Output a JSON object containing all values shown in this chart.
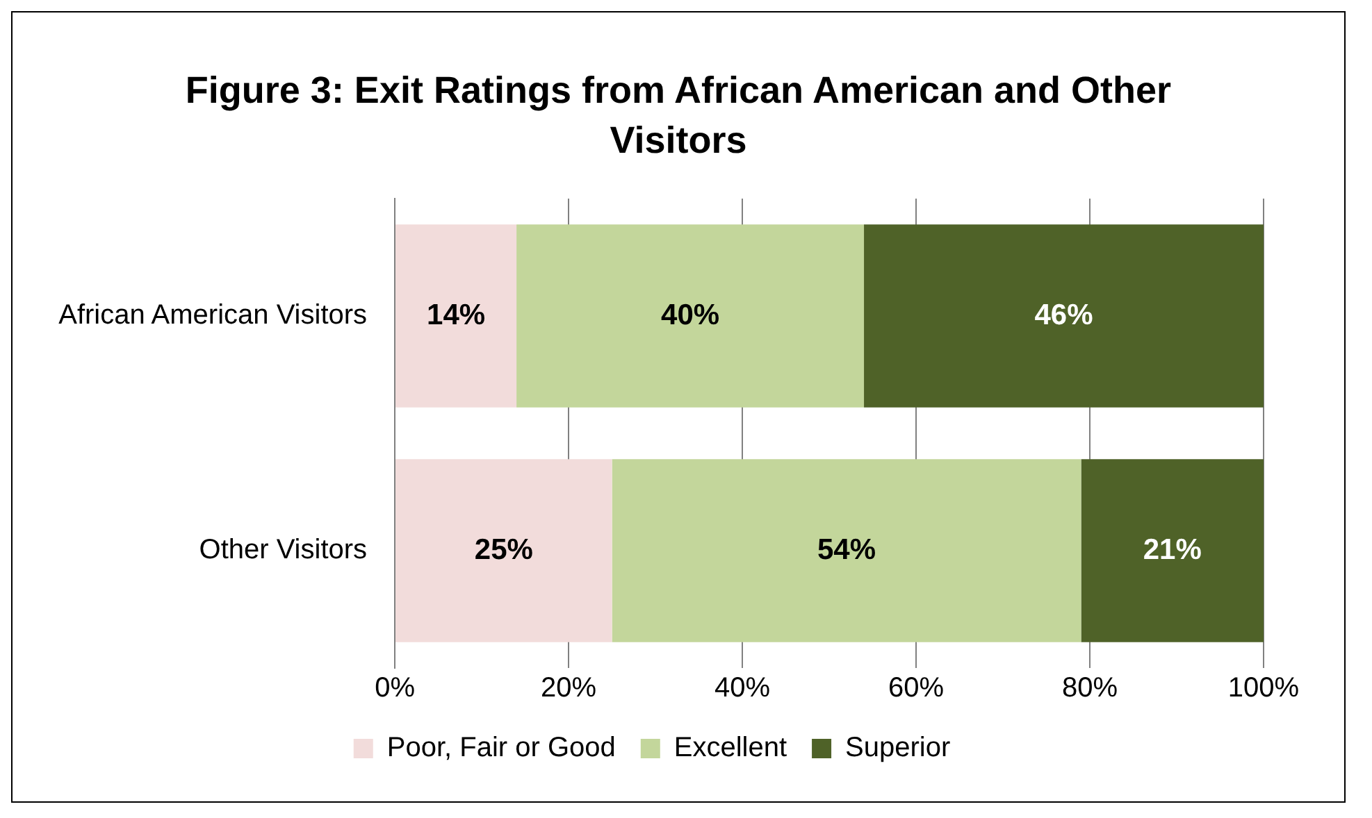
{
  "chart_data": {
    "type": "bar",
    "orientation": "horizontal",
    "stacked": true,
    "title": "Figure 3:  Exit Ratings from African American and Other Visitors",
    "categories": [
      "African American Visitors",
      "Other Visitors"
    ],
    "series": [
      {
        "name": "Poor, Fair or Good",
        "color": "#f2dcdb",
        "values": [
          14,
          25
        ],
        "value_labels": [
          "14%",
          "25%"
        ]
      },
      {
        "name": "Excellent",
        "color": "#c3d69b",
        "values": [
          40,
          54
        ],
        "value_labels": [
          "40%",
          "54%"
        ]
      },
      {
        "name": "Superior",
        "color": "#4f6228",
        "values": [
          46,
          21
        ],
        "value_labels": [
          "46%",
          "21%"
        ]
      }
    ],
    "xlim": [
      0,
      100
    ],
    "xticks": [
      {
        "value": 0,
        "label": "0%"
      },
      {
        "value": 20,
        "label": "20%"
      },
      {
        "value": 40,
        "label": "40%"
      },
      {
        "value": 60,
        "label": "60%"
      },
      {
        "value": 80,
        "label": "80%"
      },
      {
        "value": 100,
        "label": "100%"
      }
    ],
    "grid": "x",
    "legend": "bottom"
  }
}
